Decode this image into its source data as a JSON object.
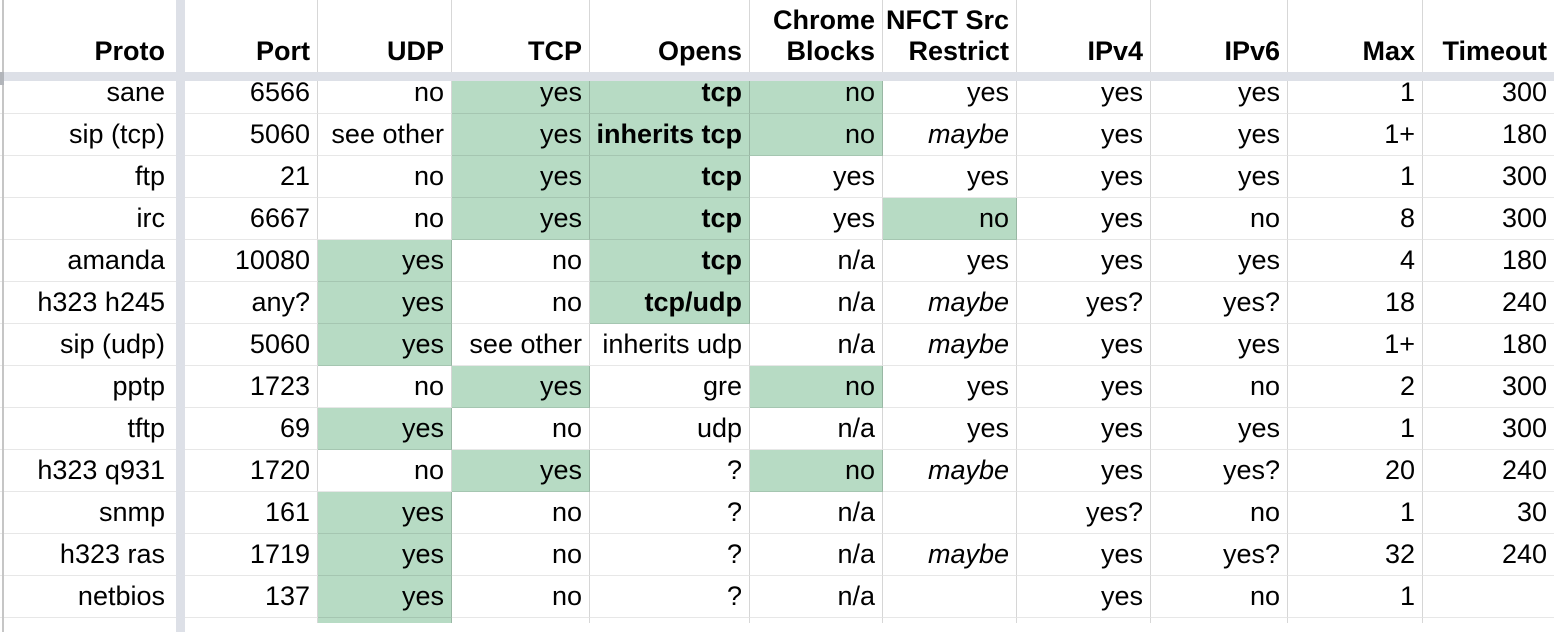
{
  "table": {
    "columns": [
      {
        "id": "proto",
        "label": "Proto"
      },
      {
        "id": "port",
        "label": "Port"
      },
      {
        "id": "udp",
        "label": "UDP"
      },
      {
        "id": "tcp",
        "label": "TCP"
      },
      {
        "id": "opens",
        "label": "Opens"
      },
      {
        "id": "chrome-blocks",
        "label": "Chrome\nBlocks"
      },
      {
        "id": "nfct-src-restrict",
        "label": "NFCT Src\nRestrict"
      },
      {
        "id": "ipv4",
        "label": "IPv4"
      },
      {
        "id": "ipv6",
        "label": "IPv6"
      },
      {
        "id": "max",
        "label": "Max"
      },
      {
        "id": "timeout",
        "label": "Timeout"
      }
    ],
    "rows": [
      [
        "sane",
        "6566",
        "no",
        {
          "v": "yes",
          "g": true
        },
        {
          "v": "tcp",
          "g": true,
          "b": true
        },
        {
          "v": "no",
          "g": true
        },
        "yes",
        "yes",
        "yes",
        "1",
        "300"
      ],
      [
        "sip (tcp)",
        "5060",
        "see other",
        {
          "v": "yes",
          "g": true
        },
        {
          "v": "inherits tcp",
          "g": true,
          "b": true
        },
        {
          "v": "no",
          "g": true
        },
        {
          "v": "maybe",
          "i": true
        },
        "yes",
        "yes",
        "1+",
        "180"
      ],
      [
        "ftp",
        "21",
        "no",
        {
          "v": "yes",
          "g": true
        },
        {
          "v": "tcp",
          "g": true,
          "b": true
        },
        "yes",
        "yes",
        "yes",
        "yes",
        "1",
        "300"
      ],
      [
        "irc",
        "6667",
        "no",
        {
          "v": "yes",
          "g": true
        },
        {
          "v": "tcp",
          "g": true,
          "b": true
        },
        "yes",
        {
          "v": "no",
          "g": true
        },
        "yes",
        "no",
        "8",
        "300"
      ],
      [
        "amanda",
        "10080",
        {
          "v": "yes",
          "g": true
        },
        "no",
        {
          "v": "tcp",
          "g": true,
          "b": true
        },
        "n/a",
        "yes",
        "yes",
        "yes",
        "4",
        "180"
      ],
      [
        "h323 h245",
        "any?",
        {
          "v": "yes",
          "g": true
        },
        "no",
        {
          "v": "tcp/udp",
          "g": true,
          "b": true
        },
        "n/a",
        {
          "v": "maybe",
          "i": true
        },
        "yes?",
        "yes?",
        "18",
        "240"
      ],
      [
        "sip (udp)",
        "5060",
        {
          "v": "yes",
          "g": true
        },
        "see other",
        "inherits udp",
        "n/a",
        {
          "v": "maybe",
          "i": true
        },
        "yes",
        "yes",
        "1+",
        "180"
      ],
      [
        "pptp",
        "1723",
        "no",
        {
          "v": "yes",
          "g": true
        },
        "gre",
        {
          "v": "no",
          "g": true
        },
        "yes",
        "yes",
        "no",
        "2",
        "300"
      ],
      [
        "tftp",
        "69",
        {
          "v": "yes",
          "g": true
        },
        "no",
        "udp",
        "n/a",
        "yes",
        "yes",
        "yes",
        "1",
        "300"
      ],
      [
        "h323 q931",
        "1720",
        "no",
        {
          "v": "yes",
          "g": true
        },
        "?",
        {
          "v": "no",
          "g": true
        },
        {
          "v": "maybe",
          "i": true
        },
        "yes",
        "yes?",
        "20",
        "240"
      ],
      [
        "snmp",
        "161",
        {
          "v": "yes",
          "g": true
        },
        "no",
        "?",
        "n/a",
        "",
        "yes?",
        "no",
        "1",
        "30"
      ],
      [
        "h323 ras",
        "1719",
        {
          "v": "yes",
          "g": true
        },
        "no",
        "?",
        "n/a",
        {
          "v": "maybe",
          "i": true
        },
        "yes",
        "yes?",
        "32",
        "240"
      ],
      [
        "netbios",
        "137",
        {
          "v": "yes",
          "g": true
        },
        "no",
        "?",
        "n/a",
        "",
        "yes",
        "no",
        "1",
        ""
      ]
    ],
    "overflow_row": [
      "",
      "",
      {
        "v": "",
        "g": true
      },
      "",
      "",
      "",
      "",
      "",
      "",
      "",
      ""
    ],
    "colors": {
      "highlight_green": "#b7dbc4",
      "freeze_divider": "#dde0e7",
      "freeze_divider_cap": "#b2b5ba"
    }
  }
}
